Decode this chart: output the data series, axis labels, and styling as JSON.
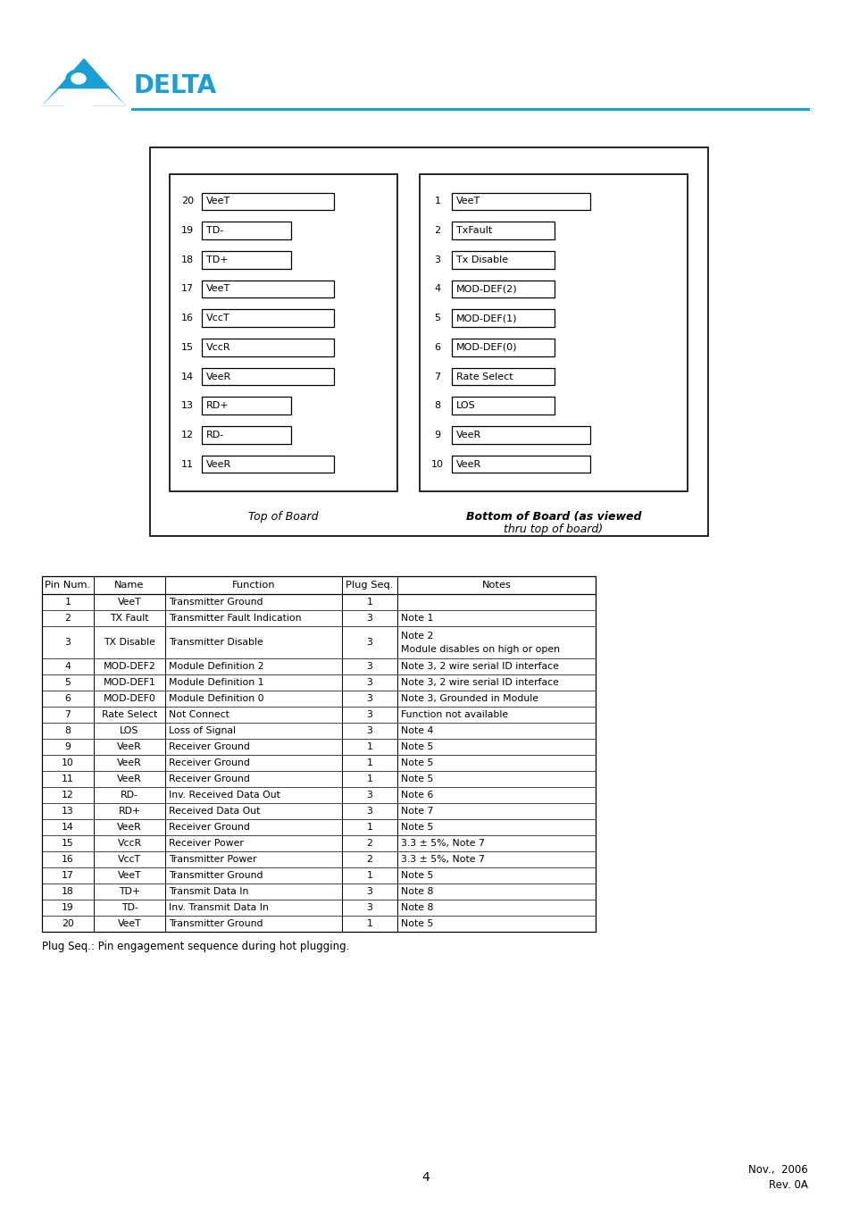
{
  "logo_color": "#1a9fd4",
  "background": "#ffffff",
  "text_color": "#000000",
  "left_pins": [
    {
      "num": 20,
      "label": "VeeT",
      "wide": true
    },
    {
      "num": 19,
      "label": "TD-",
      "wide": false
    },
    {
      "num": 18,
      "label": "TD+",
      "wide": false
    },
    {
      "num": 17,
      "label": "VeeT",
      "wide": true
    },
    {
      "num": 16,
      "label": "VccT",
      "wide": true
    },
    {
      "num": 15,
      "label": "VccR",
      "wide": true
    },
    {
      "num": 14,
      "label": "VeeR",
      "wide": true
    },
    {
      "num": 13,
      "label": "RD+",
      "wide": false
    },
    {
      "num": 12,
      "label": "RD-",
      "wide": false
    },
    {
      "num": 11,
      "label": "VeeR",
      "wide": true
    }
  ],
  "right_pins": [
    {
      "num": 1,
      "label": "VeeT",
      "wide": true
    },
    {
      "num": 2,
      "label": "TxFault",
      "wide": false
    },
    {
      "num": 3,
      "label": "Tx Disable",
      "wide": false
    },
    {
      "num": 4,
      "label": "MOD-DEF(2)",
      "wide": false
    },
    {
      "num": 5,
      "label": "MOD-DEF(1)",
      "wide": false
    },
    {
      "num": 6,
      "label": "MOD-DEF(0)",
      "wide": false
    },
    {
      "num": 7,
      "label": "Rate Select",
      "wide": false
    },
    {
      "num": 8,
      "label": "LOS",
      "wide": false
    },
    {
      "num": 9,
      "label": "VeeR",
      "wide": true
    },
    {
      "num": 10,
      "label": "VeeR",
      "wide": true
    }
  ],
  "left_caption": "Top of Board",
  "right_caption_line1": "Bottom of Board (as viewed",
  "right_caption_line2": "thru top of board)",
  "table_headers": [
    "Pin Num.",
    "Name",
    "Function",
    "Plug Seq.",
    "Notes"
  ],
  "table_col_widths": [
    58,
    80,
    198,
    62,
    222
  ],
  "table_rows": [
    [
      "1",
      "VeeT",
      "Transmitter Ground",
      "1",
      ""
    ],
    [
      "2",
      "TX Fault",
      "Transmitter Fault Indication",
      "3",
      "Note 1"
    ],
    [
      "3",
      "TX Disable",
      "Transmitter Disable",
      "3",
      "Note 2\nModule disables on high or open"
    ],
    [
      "4",
      "MOD-DEF2",
      "Module Definition 2",
      "3",
      "Note 3, 2 wire serial ID interface"
    ],
    [
      "5",
      "MOD-DEF1",
      "Module Definition 1",
      "3",
      "Note 3, 2 wire serial ID interface"
    ],
    [
      "6",
      "MOD-DEF0",
      "Module Definition 0",
      "3",
      "Note 3, Grounded in Module"
    ],
    [
      "7",
      "Rate Select",
      "Not Connect",
      "3",
      "Function not available"
    ],
    [
      "8",
      "LOS",
      "Loss of Signal",
      "3",
      "Note 4"
    ],
    [
      "9",
      "VeeR",
      "Receiver Ground",
      "1",
      "Note 5"
    ],
    [
      "10",
      "VeeR",
      "Receiver Ground",
      "1",
      "Note 5"
    ],
    [
      "11",
      "VeeR",
      "Receiver Ground",
      "1",
      "Note 5"
    ],
    [
      "12",
      "RD-",
      "Inv. Received Data Out",
      "3",
      "Note 6"
    ],
    [
      "13",
      "RD+",
      "Received Data Out",
      "3",
      "Note 7"
    ],
    [
      "14",
      "VeeR",
      "Receiver Ground",
      "1",
      "Note 5"
    ],
    [
      "15",
      "VccR",
      "Receiver Power",
      "2",
      "3.3 ± 5%, Note 7"
    ],
    [
      "16",
      "VccT",
      "Transmitter Power",
      "2",
      "3.3 ± 5%, Note 7"
    ],
    [
      "17",
      "VeeT",
      "Transmitter Ground",
      "1",
      "Note 5"
    ],
    [
      "18",
      "TD+",
      "Transmit Data In",
      "3",
      "Note 8"
    ],
    [
      "19",
      "TD-",
      "Inv. Transmit Data In",
      "3",
      "Note 8"
    ],
    [
      "20",
      "VeeT",
      "Transmitter Ground",
      "1",
      "Note 5"
    ]
  ],
  "plug_seq_note": "Plug Seq.: Pin engagement sequence during hot plugging.",
  "footer_page": "4",
  "footer_date": "Nov.,  2006",
  "footer_rev": "Rev. 0A"
}
